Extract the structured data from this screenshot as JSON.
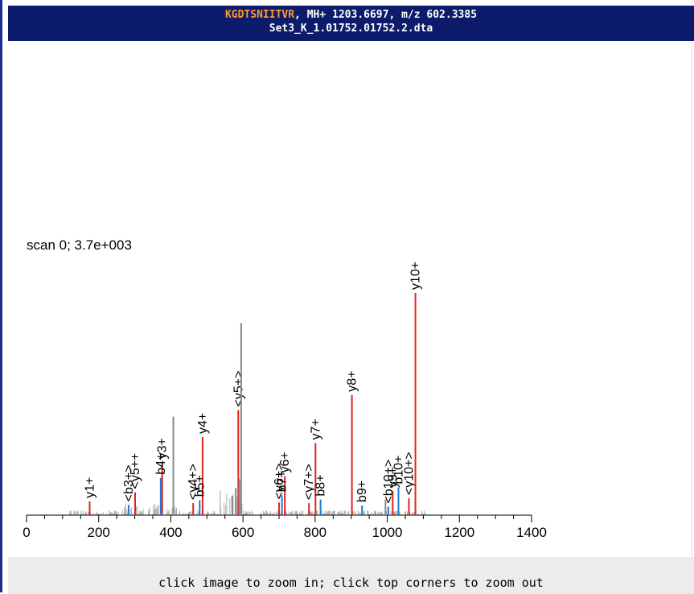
{
  "header": {
    "peptide": "KGDTSNIITVR",
    "info": ", MH+ 1203.6697, m/z 602.3385",
    "file": "Set3_K_1.01752.01752.2.dta"
  },
  "footer": {
    "hint": "click image to zoom in; click top corners to zoom out"
  },
  "colors": {
    "header_bg": "#0c1c6b",
    "peptide": "#ff9a2e",
    "y_ion": "#e0241b",
    "b_ion": "#1f77d8",
    "noise": "#888888"
  },
  "chart_data": {
    "type": "bar",
    "title": "scan 0; 3.7e+003",
    "xlim": [
      0,
      1400
    ],
    "ylim": [
      0,
      3700
    ],
    "xticks": [
      0,
      200,
      400,
      600,
      800,
      1000,
      1200,
      1400
    ],
    "xlabel": "",
    "ylabel": "",
    "grid": false,
    "series": [
      {
        "name": "y",
        "points": [
          {
            "x": 175,
            "y": 230,
            "label": "y1+"
          },
          {
            "x": 301,
            "y": 380,
            "label": "<y5++"
          },
          {
            "x": 376,
            "y": 880,
            "label": "y3+"
          },
          {
            "x": 462,
            "y": 200,
            "label": "<y4+>"
          },
          {
            "x": 488,
            "y": 1300,
            "label": "y4+"
          },
          {
            "x": 587,
            "y": 1750,
            "label": "<y5+>"
          },
          {
            "x": 700,
            "y": 210,
            "label": "<y6+>"
          },
          {
            "x": 716,
            "y": 650,
            "label": "y6+"
          },
          {
            "x": 783,
            "y": 200,
            "label": "<y7+>"
          },
          {
            "x": 801,
            "y": 1200,
            "label": "y7+"
          },
          {
            "x": 902,
            "y": 2000,
            "label": "y8+"
          },
          {
            "x": 1015,
            "y": 400,
            "label": "y9+"
          },
          {
            "x": 1060,
            "y": 280,
            "label": "<y10+>"
          },
          {
            "x": 1078,
            "y": 3700,
            "label": "y10+"
          }
        ]
      },
      {
        "name": "b",
        "points": [
          {
            "x": 283,
            "y": 170,
            "label": "<b3+>"
          },
          {
            "x": 372,
            "y": 620,
            "label": "b4+"
          },
          {
            "x": 480,
            "y": 250,
            "label": "b5+"
          },
          {
            "x": 708,
            "y": 330,
            "label": "b7+"
          },
          {
            "x": 815,
            "y": 260,
            "label": "b8+"
          },
          {
            "x": 930,
            "y": 160,
            "label": "b9+"
          },
          {
            "x": 1003,
            "y": 140,
            "label": "<b10+>"
          },
          {
            "x": 1031,
            "y": 460,
            "label": "b10+"
          }
        ]
      },
      {
        "name": "other",
        "points": [
          {
            "x": 407,
            "y": 1640
          },
          {
            "x": 595,
            "y": 3200
          },
          {
            "x": 995,
            "y": 260
          },
          {
            "x": 590,
            "y": 600
          },
          {
            "x": 580,
            "y": 450
          },
          {
            "x": 570,
            "y": 320
          }
        ]
      }
    ]
  }
}
